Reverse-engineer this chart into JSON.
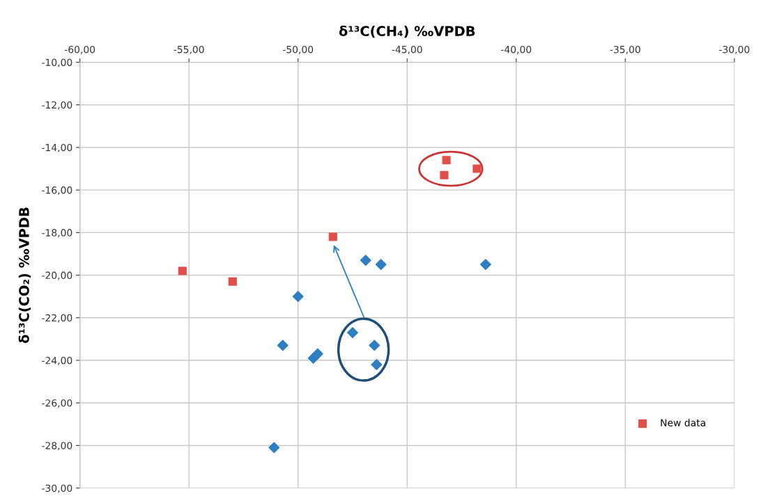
{
  "chart_data": {
    "type": "scatter",
    "xlabel": "δ¹³C(CH₄) ‰VPDB",
    "ylabel": "δ¹³C(CO₂) ‰VPDB",
    "xlim": [
      -60,
      -30
    ],
    "xticks": [
      {
        "value": -60,
        "label": "-60,00"
      },
      {
        "value": -55,
        "label": "-55,00"
      },
      {
        "value": -50,
        "label": "-50,00"
      },
      {
        "value": -45,
        "label": "-45,00"
      },
      {
        "value": -40,
        "label": "-40,00"
      },
      {
        "value": -35,
        "label": "-35,00"
      },
      {
        "value": -30,
        "label": "-30,00"
      }
    ],
    "ylim": [
      -30,
      -10
    ],
    "yticks": [
      {
        "value": -30,
        "label": "-30,00"
      },
      {
        "value": -28,
        "label": "-28,00"
      },
      {
        "value": -26,
        "label": "-26,00"
      },
      {
        "value": -24,
        "label": "-24,00"
      },
      {
        "value": -22,
        "label": "-22,00"
      },
      {
        "value": -20,
        "label": "-20,00"
      },
      {
        "value": -18,
        "label": "-18,00"
      },
      {
        "value": -16,
        "label": "-16,00"
      },
      {
        "value": -14,
        "label": "-14,00"
      },
      {
        "value": -12,
        "label": "-12,00"
      },
      {
        "value": -10,
        "label": "-10,00"
      }
    ],
    "grid": true,
    "legend": "bottom right",
    "series": [
      {
        "color": "#2e7fc1",
        "marker": "diamond",
        "x": [
          -46.9,
          -46.2,
          -41.4,
          -50.0,
          -47.5,
          -46.5,
          -46.4,
          -50.7,
          -49.3,
          -49.1,
          -51.1
        ],
        "values": [
          -19.3,
          -19.5,
          -19.5,
          -21.0,
          -22.7,
          -23.3,
          -24.2,
          -23.3,
          -23.9,
          -23.7,
          -28.1
        ]
      },
      {
        "name": "New data",
        "color": "#e0504a",
        "marker": "square",
        "x": [
          -55.3,
          -53.0,
          -48.4,
          -43.2,
          -43.3,
          -41.8
        ],
        "values": [
          -19.8,
          -20.3,
          -18.2,
          -14.6,
          -15.3,
          -15.0
        ]
      }
    ]
  }
}
